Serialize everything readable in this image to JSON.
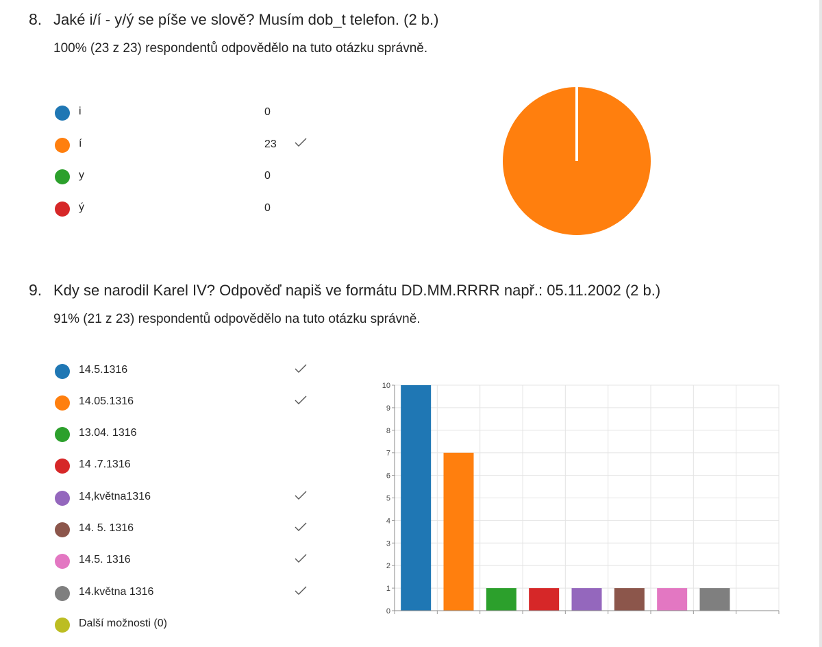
{
  "question8": {
    "number": "8.",
    "title": "Jaké i/í - y/ý se píše ve slově? Musím dob_t telefon. (2 b.)",
    "summary": "100% (23 z 23) respondentů odpovědělo na tuto otázku správně.",
    "options": [
      {
        "label": "i",
        "count": "0",
        "color": "#1f77b4",
        "correct": false
      },
      {
        "label": "í",
        "count": "23",
        "color": "#ff7f0e",
        "correct": true
      },
      {
        "label": "y",
        "count": "0",
        "color": "#2ca02c",
        "correct": false
      },
      {
        "label": "ý",
        "count": "0",
        "color": "#d62728",
        "correct": false
      }
    ]
  },
  "question9": {
    "number": "9.",
    "title": "Kdy se narodil Karel IV? Odpověď napiš ve formátu DD.MM.RRRR např.: 05.11.2002 (2 b.)",
    "summary": "91% (21 z 23) respondentů odpovědělo na tuto otázku správně.",
    "options": [
      {
        "label": "14.5.1316",
        "color": "#1f77b4",
        "correct": true
      },
      {
        "label": "14.05.1316",
        "color": "#ff7f0e",
        "correct": true
      },
      {
        "label": "13.04. 1316",
        "color": "#2ca02c",
        "correct": false
      },
      {
        "label": "14 .7.1316",
        "color": "#d62728",
        "correct": false
      },
      {
        "label": "14,května1316",
        "color": "#9467bd",
        "correct": true
      },
      {
        "label": "14. 5. 1316",
        "color": "#8c564b",
        "correct": true
      },
      {
        "label": "14.5. 1316",
        "color": "#e377c2",
        "correct": true
      },
      {
        "label": "14.května 1316",
        "color": "#7f7f7f",
        "correct": true
      },
      {
        "label": "Další možnosti (0)",
        "color": "#bcbd22",
        "correct": false
      }
    ]
  },
  "chart_data": [
    {
      "type": "pie",
      "categories": [
        "i",
        "í",
        "y",
        "ý"
      ],
      "values": [
        0,
        23,
        0,
        0
      ],
      "colors": [
        "#1f77b4",
        "#ff7f0e",
        "#2ca02c",
        "#d62728"
      ]
    },
    {
      "type": "bar",
      "categories": [
        "14.5.1316",
        "14.05.1316",
        "13.04. 1316",
        "14 .7.1316",
        "14,května1316",
        "14. 5. 1316",
        "14.5. 1316",
        "14.května 1316"
      ],
      "values": [
        10,
        7,
        1,
        1,
        1,
        1,
        1,
        1
      ],
      "colors": [
        "#1f77b4",
        "#ff7f0e",
        "#2ca02c",
        "#d62728",
        "#9467bd",
        "#8c564b",
        "#e377c2",
        "#7f7f7f"
      ],
      "ylim": [
        0,
        10
      ],
      "yticks": [
        "0",
        "1",
        "2",
        "3",
        "4",
        "5",
        "6",
        "7",
        "8",
        "9",
        "10"
      ],
      "grid": true
    }
  ]
}
